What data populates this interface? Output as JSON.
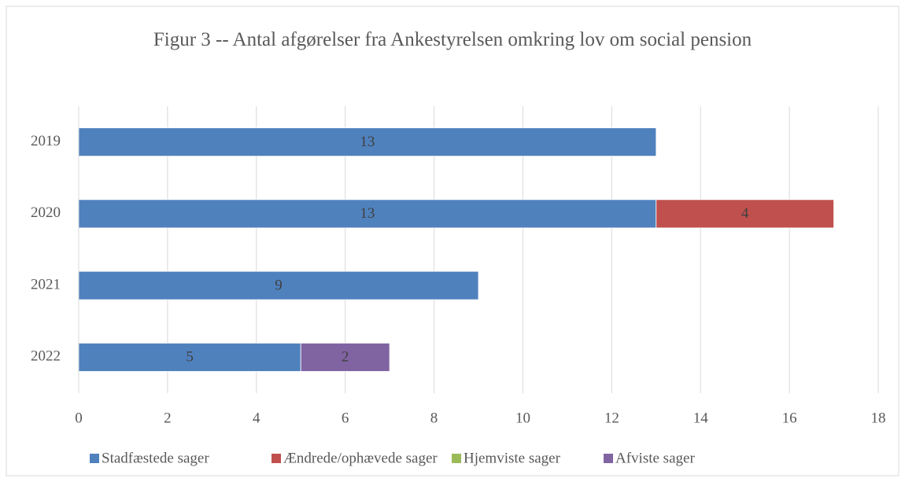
{
  "chart_data": {
    "type": "bar",
    "orientation": "horizontal",
    "stacked": true,
    "title": "Figur 3 -- Antal afgørelser fra Ankestyrelsen omkring lov om social pension",
    "categories": [
      "2019",
      "2020",
      "2021",
      "2022"
    ],
    "series": [
      {
        "name": "Stadfæstede sager",
        "color": "#4f81bd",
        "values": [
          13,
          13,
          9,
          5
        ]
      },
      {
        "name": "Ændrede/ophævede sager",
        "color": "#c0504d",
        "values": [
          null,
          4,
          null,
          null
        ]
      },
      {
        "name": "Hjemviste sager",
        "color": "#9bbb59",
        "values": [
          null,
          null,
          null,
          null
        ]
      },
      {
        "name": "Afviste sager",
        "color": "#8064a2",
        "values": [
          null,
          null,
          null,
          2
        ]
      }
    ],
    "xlim": [
      0,
      18
    ],
    "xticks": [
      0,
      2,
      4,
      6,
      8,
      10,
      12,
      14,
      16,
      18
    ],
    "grid": true,
    "legend": "bottom"
  }
}
